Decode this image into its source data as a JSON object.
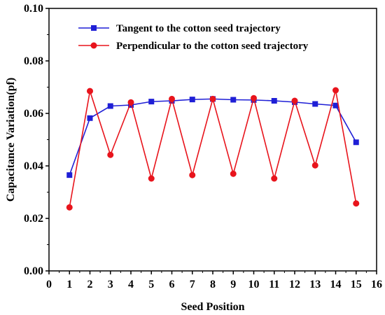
{
  "chart_data": {
    "type": "line",
    "title": "",
    "xlabel": "Seed Position",
    "ylabel": "Capacitance Variation(pf)",
    "xlim": [
      0,
      16
    ],
    "ylim": [
      0.0,
      0.1
    ],
    "x_ticks": [
      0,
      1,
      2,
      3,
      4,
      5,
      6,
      7,
      8,
      9,
      10,
      11,
      12,
      13,
      14,
      15,
      16
    ],
    "y_ticks": [
      0.0,
      0.02,
      0.04,
      0.06,
      0.08,
      0.1
    ],
    "x_tick_labels": [
      "0",
      "1",
      "2",
      "3",
      "4",
      "5",
      "6",
      "7",
      "8",
      "9",
      "10",
      "11",
      "12",
      "13",
      "14",
      "15",
      "16"
    ],
    "y_tick_labels": [
      "0.00",
      "0.02",
      "0.04",
      "0.06",
      "0.08",
      "0.10"
    ],
    "grid": false,
    "legend_position": "top-center",
    "series": [
      {
        "name": "Tangent to the cotton seed trajectory",
        "color": "#1f1fd6",
        "marker": "square",
        "x": [
          1,
          2,
          3,
          4,
          5,
          6,
          7,
          8,
          9,
          10,
          11,
          12,
          13,
          14,
          15
        ],
        "values": [
          0.0365,
          0.0582,
          0.0628,
          0.0632,
          0.0645,
          0.0648,
          0.0653,
          0.0655,
          0.0652,
          0.0651,
          0.0648,
          0.0643,
          0.0636,
          0.063,
          0.049
        ]
      },
      {
        "name": "Perpendicular to the cotton seed trajectory",
        "color": "#e8141c",
        "marker": "circle",
        "x": [
          1,
          2,
          3,
          4,
          5,
          6,
          7,
          8,
          9,
          10,
          11,
          12,
          13,
          14,
          15
        ],
        "values": [
          0.0242,
          0.0685,
          0.0442,
          0.0642,
          0.0352,
          0.0655,
          0.0365,
          0.0655,
          0.037,
          0.0658,
          0.0352,
          0.0648,
          0.0402,
          0.0688,
          0.0257
        ]
      }
    ]
  }
}
